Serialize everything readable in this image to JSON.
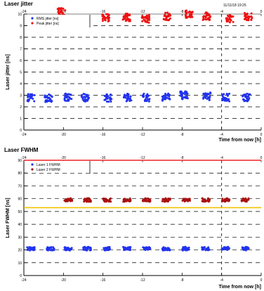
{
  "header": {
    "title": "Laser jitter",
    "timestamp": "11/11/18 19:25"
  },
  "colors": {
    "blue": "#2233ee",
    "red": "#ee1111",
    "darkred": "#aa1111",
    "limit_red": "#ee2222",
    "limit_yellow": "#f2c200",
    "grid": "#000000"
  },
  "chart_data": [
    {
      "type": "scatter",
      "title": "Laser jitter",
      "ylabel": "Laser jitter [ns]",
      "xlabel": "Time from now [h]",
      "xlim": [
        -24,
        0
      ],
      "ylim": [
        0,
        10
      ],
      "x_ticks": [
        -24,
        -20,
        -16,
        -12,
        -8,
        -4,
        0
      ],
      "y_ticks": [
        0,
        1,
        2,
        3,
        4,
        5,
        6,
        7,
        8,
        9,
        10
      ],
      "grid": "dashed",
      "legend": "top-left",
      "legend_entries": [
        "RMS jitter [ns]",
        "Peak jitter [ns]"
      ],
      "series": [
        {
          "name": "RMS jitter [ns]",
          "color": "#2233ee",
          "clusters": [
            {
              "x": -23.3,
              "y": 2.8
            },
            {
              "x": -21.5,
              "y": 2.75
            },
            {
              "x": -19.5,
              "y": 2.8
            },
            {
              "x": -17.8,
              "y": 2.8
            },
            {
              "x": -15.5,
              "y": 2.75
            },
            {
              "x": -13.5,
              "y": 2.8
            },
            {
              "x": -11.6,
              "y": 2.8
            },
            {
              "x": -9.6,
              "y": 2.85
            },
            {
              "x": -7.8,
              "y": 3.0
            },
            {
              "x": -5.5,
              "y": 2.9
            },
            {
              "x": -3.6,
              "y": 2.8
            },
            {
              "x": -1.5,
              "y": 2.8
            }
          ]
        },
        {
          "name": "Peak jitter [ns]",
          "color": "#ee1111",
          "clusters": [
            {
              "x": -20.2,
              "y": 10.2
            },
            {
              "x": -15.7,
              "y": 9.7
            },
            {
              "x": -13.6,
              "y": 9.7
            },
            {
              "x": -11.7,
              "y": 9.6
            },
            {
              "x": -9.5,
              "y": 9.8
            },
            {
              "x": -7.3,
              "y": 10.0
            },
            {
              "x": -5.5,
              "y": 9.8
            },
            {
              "x": -3.2,
              "y": 9.6
            },
            {
              "x": -1.3,
              "y": 9.8
            }
          ]
        }
      ]
    },
    {
      "type": "scatter",
      "title": "Laser FWHM",
      "ylabel": "Laser FWHM [ns]",
      "xlabel": "Time from now [h]",
      "xlim": [
        -24,
        0
      ],
      "ylim": [
        0,
        90
      ],
      "x_ticks": [
        -24,
        -20,
        -16,
        -12,
        -8,
        -4,
        0
      ],
      "y_ticks": [
        0,
        10,
        20,
        30,
        40,
        50,
        60,
        70,
        80,
        90
      ],
      "grid": "dashed",
      "legend": "top-left",
      "legend_entries": [
        "Laser 1 FWHM",
        "Laser 2 FWHM"
      ],
      "limits": [
        {
          "y": 90,
          "color": "#ee2222"
        },
        {
          "y": 53,
          "color": "#f2c200"
        }
      ],
      "series": [
        {
          "name": "Laser 1 FWHM",
          "color": "#2233ee",
          "clusters": [
            {
              "x": -23.3,
              "y": 21
            },
            {
              "x": -21.3,
              "y": 21
            },
            {
              "x": -19.5,
              "y": 21
            },
            {
              "x": -17.6,
              "y": 21
            },
            {
              "x": -15.6,
              "y": 21
            },
            {
              "x": -13.6,
              "y": 21
            },
            {
              "x": -11.6,
              "y": 21
            },
            {
              "x": -9.6,
              "y": 21
            },
            {
              "x": -7.6,
              "y": 21
            },
            {
              "x": -5.6,
              "y": 21
            },
            {
              "x": -3.6,
              "y": 21
            },
            {
              "x": -1.6,
              "y": 21
            }
          ]
        },
        {
          "name": "Laser 2 FWHM",
          "color": "#aa1111",
          "clusters": [
            {
              "x": -19.5,
              "y": 59
            },
            {
              "x": -17.6,
              "y": 59
            },
            {
              "x": -15.6,
              "y": 59
            },
            {
              "x": -13.6,
              "y": 59
            },
            {
              "x": -11.6,
              "y": 59
            },
            {
              "x": -9.6,
              "y": 59
            },
            {
              "x": -7.6,
              "y": 59
            },
            {
              "x": -5.6,
              "y": 59
            },
            {
              "x": -3.6,
              "y": 59
            },
            {
              "x": -1.6,
              "y": 59
            }
          ]
        }
      ]
    }
  ]
}
